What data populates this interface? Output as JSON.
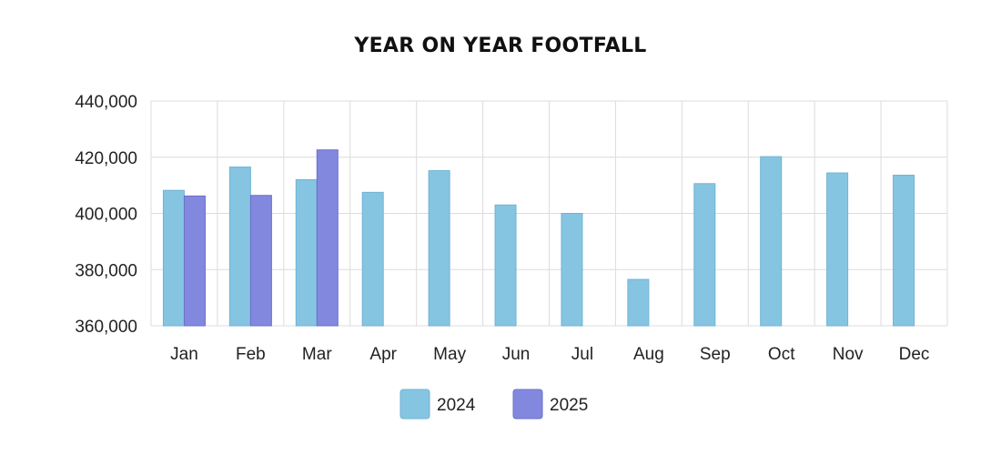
{
  "chart_data": {
    "type": "bar",
    "title": "YEAR ON YEAR FOOTFALL",
    "xlabel": "",
    "ylabel": "",
    "ylim": [
      360000,
      440000
    ],
    "yticks": [
      360000,
      380000,
      400000,
      420000,
      440000
    ],
    "ytick_labels": [
      "360,000",
      "380,000",
      "400,000",
      "420,000",
      "440,000"
    ],
    "grid": true,
    "legend_position": "bottom-center",
    "categories": [
      "Jan",
      "Feb",
      "Mar",
      "Apr",
      "May",
      "Jun",
      "Jul",
      "Aug",
      "Sep",
      "Oct",
      "Nov",
      "Dec"
    ],
    "series": [
      {
        "name": "2024",
        "color": "#86C5E2",
        "stroke": "#6FB3D4",
        "values": [
          408200,
          416500,
          412000,
          407500,
          415200,
          403000,
          400000,
          376500,
          410600,
          420200,
          414400,
          413600
        ]
      },
      {
        "name": "2025",
        "color": "#8388DF",
        "stroke": "#6A6FCB",
        "values": [
          406200,
          406400,
          422600,
          null,
          null,
          null,
          null,
          null,
          null,
          null,
          null,
          null
        ]
      }
    ]
  }
}
